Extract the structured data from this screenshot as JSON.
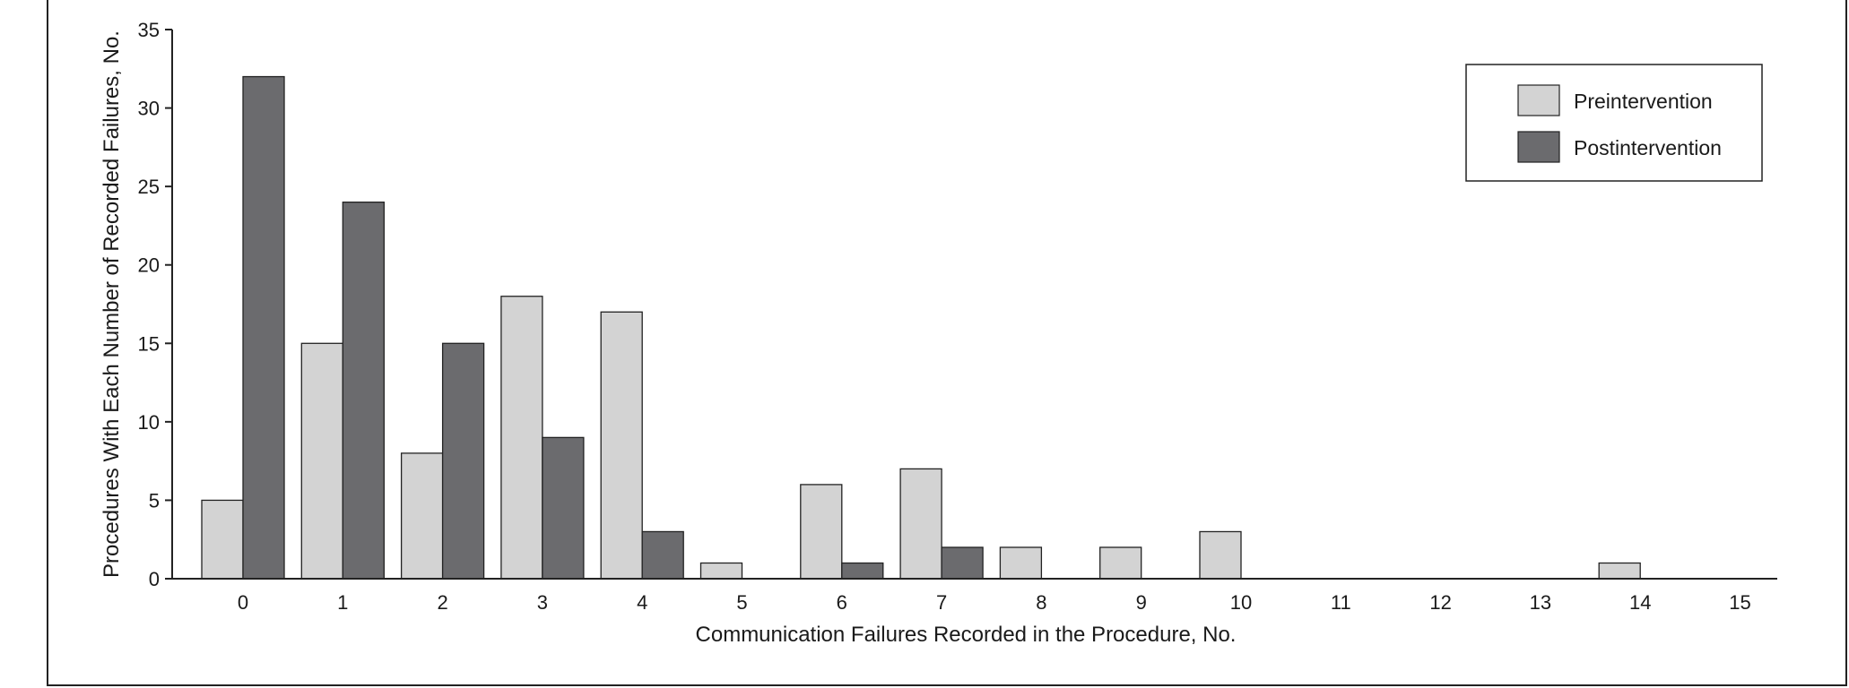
{
  "chart_data": {
    "type": "bar",
    "categories": [
      "0",
      "1",
      "2",
      "3",
      "4",
      "5",
      "6",
      "7",
      "8",
      "9",
      "10",
      "11",
      "12",
      "13",
      "14",
      "15"
    ],
    "series": [
      {
        "name": "Preintervention",
        "values": [
          5,
          15,
          8,
          18,
          17,
          1,
          6,
          7,
          2,
          2,
          3,
          0,
          0,
          0,
          1,
          0
        ],
        "color": "#d3d3d3"
      },
      {
        "name": "Postintervention",
        "values": [
          32,
          24,
          15,
          9,
          3,
          0,
          1,
          2,
          0,
          0,
          0,
          0,
          0,
          0,
          0,
          0
        ],
        "color": "#6b6b6e"
      }
    ],
    "xlabel": "Communication Failures Recorded in the Procedure, No.",
    "ylabel": "Procedures With Each Number of Recorded Failures, No.",
    "ylim": [
      0,
      35
    ],
    "yticks": [
      "0",
      "5",
      "10",
      "15",
      "20",
      "25",
      "30",
      "35"
    ],
    "grid": false,
    "legend_position": "top-right"
  }
}
